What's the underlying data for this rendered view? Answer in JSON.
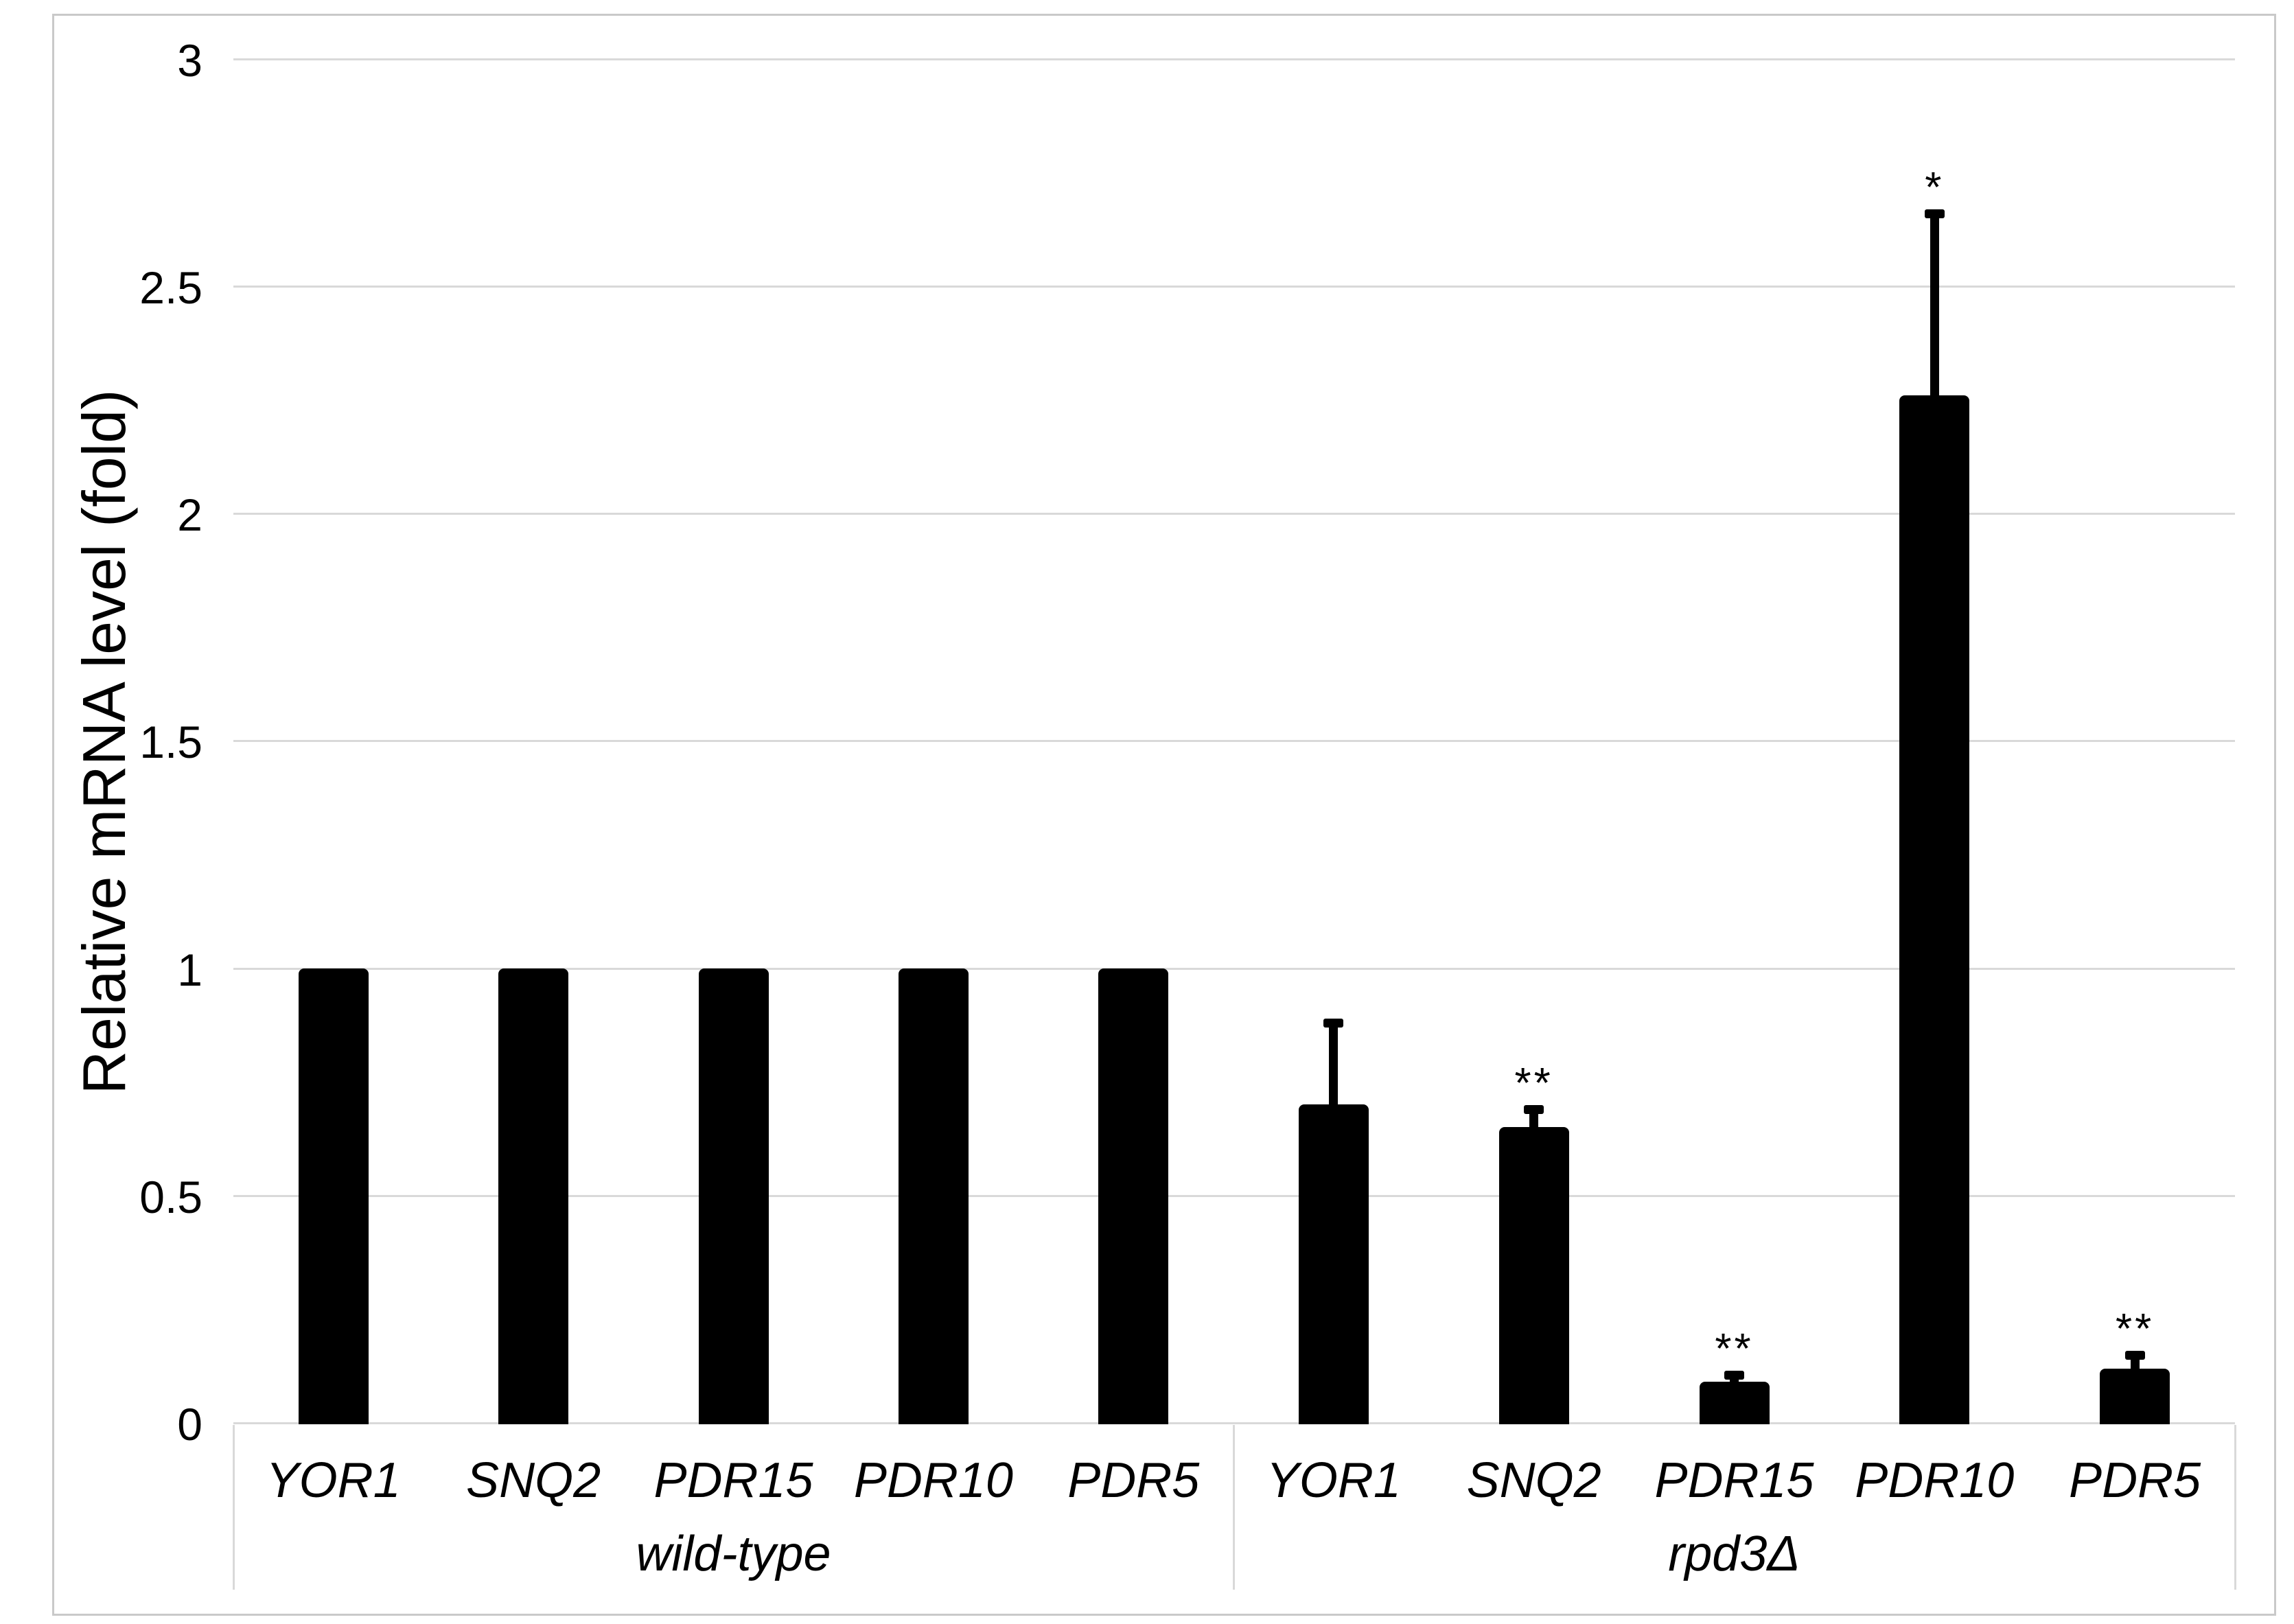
{
  "figure": {
    "background": "#ffffff",
    "border_color": "#c9c9c9"
  },
  "chart_data": {
    "type": "bar",
    "title": "",
    "xlabel": "",
    "ylabel": "Relative mRNA level (fold)",
    "ylim": [
      0,
      3
    ],
    "yticks": [
      0,
      0.5,
      1,
      1.5,
      2,
      2.5,
      3
    ],
    "ytick_labels": [
      "0",
      "0.5",
      "1",
      "1.5",
      "2",
      "2.5",
      "3"
    ],
    "grid": "horizontal-gridlines-on",
    "legend": "none",
    "bar_color": "#000000",
    "gridline_color": "#d9d9d9",
    "categories": [
      "YOR1",
      "SNQ2",
      "PDR15",
      "PDR10",
      "PDR5"
    ],
    "groups": [
      {
        "label": "wild-type",
        "bars": [
          {
            "gene": "YOR1",
            "value": 1.0,
            "error_up": 0,
            "sig": ""
          },
          {
            "gene": "SNQ2",
            "value": 1.0,
            "error_up": 0,
            "sig": ""
          },
          {
            "gene": "PDR15",
            "value": 1.0,
            "error_up": 0,
            "sig": ""
          },
          {
            "gene": "PDR10",
            "value": 1.0,
            "error_up": 0,
            "sig": ""
          },
          {
            "gene": "PDR5",
            "value": 1.0,
            "error_up": 0,
            "sig": ""
          }
        ]
      },
      {
        "label": "rpd3Δ",
        "bars": [
          {
            "gene": "YOR1",
            "value": 0.7,
            "error_up": 0.18,
            "sig": ""
          },
          {
            "gene": "SNQ2",
            "value": 0.65,
            "error_up": 0.04,
            "sig": "**"
          },
          {
            "gene": "PDR15",
            "value": 0.09,
            "error_up": 0.015,
            "sig": "**"
          },
          {
            "gene": "PDR10",
            "value": 2.26,
            "error_up": 0.4,
            "sig": "*"
          },
          {
            "gene": "PDR5",
            "value": 0.12,
            "error_up": 0.03,
            "sig": "**"
          }
        ]
      }
    ]
  }
}
